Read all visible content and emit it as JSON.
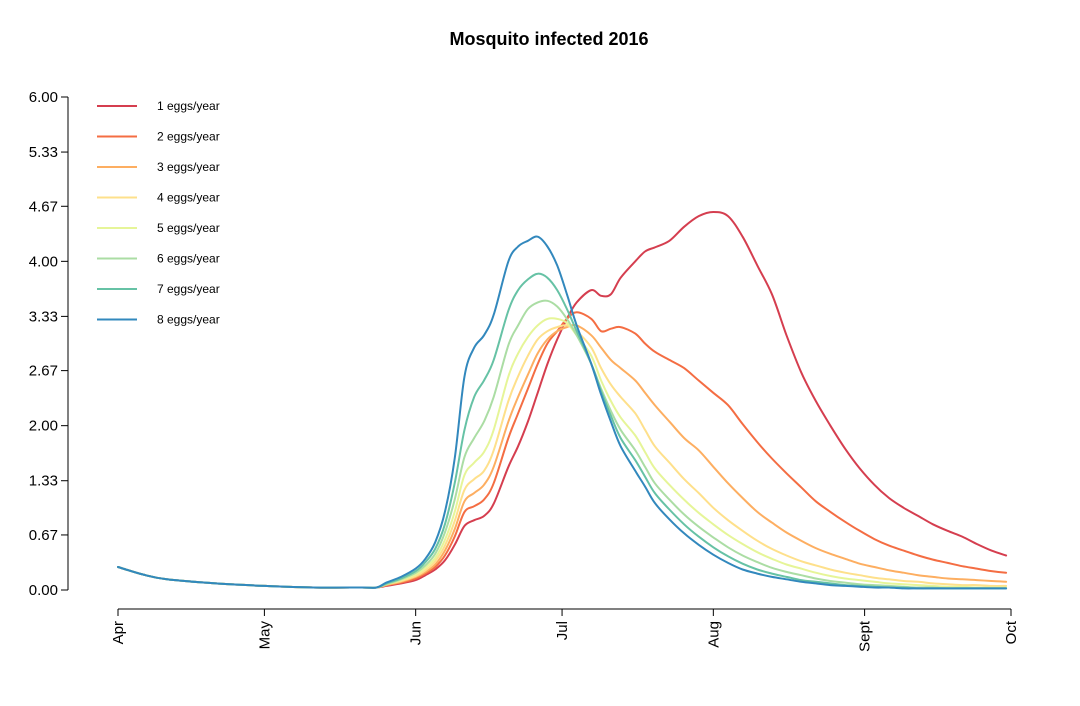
{
  "chart_data": {
    "type": "line",
    "title": "Mosquito infected 2016",
    "xlabel": "",
    "ylabel": "",
    "ylim": [
      0,
      6
    ],
    "y_ticks": [
      0.0,
      0.67,
      1.33,
      2.0,
      2.67,
      3.33,
      4.0,
      4.67,
      5.33,
      6.0
    ],
    "y_tick_labels": [
      "0.00",
      "0.67",
      "1.33",
      "2.00",
      "2.67",
      "3.33",
      "4.00",
      "4.67",
      "5.33",
      "6.00"
    ],
    "x_ticks": [
      {
        "label": "Apr",
        "day": 0
      },
      {
        "label": "May",
        "day": 30
      },
      {
        "label": "Jun",
        "day": 61
      },
      {
        "label": "Jul",
        "day": 91
      },
      {
        "label": "Aug",
        "day": 122
      },
      {
        "label": "Sept",
        "day": 153
      },
      {
        "label": "Oct",
        "day": 183
      }
    ],
    "xlim": [
      0,
      183
    ],
    "grid": false,
    "legend_position": "top-left",
    "series": [
      {
        "name": "1 eggs/year",
        "color": "#d53e4f",
        "x": [
          0,
          5,
          10,
          20,
          30,
          40,
          50,
          53,
          55,
          58,
          61,
          63,
          65,
          67,
          69,
          71,
          73,
          75,
          77,
          80,
          82,
          84,
          86,
          88,
          90,
          92,
          94,
          97,
          99,
          101,
          103,
          106,
          108,
          110,
          113,
          116,
          119,
          122,
          125,
          128,
          131,
          134,
          137,
          140,
          143,
          146,
          149,
          152,
          155,
          158,
          161,
          164,
          167,
          170,
          173,
          176,
          179,
          182
        ],
        "y": [
          0.28,
          0.19,
          0.13,
          0.08,
          0.05,
          0.03,
          0.03,
          0.03,
          0.05,
          0.08,
          0.12,
          0.18,
          0.25,
          0.36,
          0.55,
          0.78,
          0.85,
          0.9,
          1.05,
          1.5,
          1.75,
          2.05,
          2.4,
          2.75,
          3.05,
          3.3,
          3.5,
          3.65,
          3.58,
          3.6,
          3.8,
          4.0,
          4.12,
          4.17,
          4.25,
          4.42,
          4.55,
          4.6,
          4.55,
          4.3,
          3.95,
          3.6,
          3.1,
          2.65,
          2.3,
          2.0,
          1.72,
          1.48,
          1.28,
          1.12,
          1.0,
          0.9,
          0.8,
          0.72,
          0.65,
          0.56,
          0.48,
          0.42
        ]
      },
      {
        "name": "2 eggs/year",
        "color": "#f46d43",
        "x": [
          0,
          5,
          10,
          20,
          30,
          40,
          50,
          53,
          55,
          58,
          61,
          63,
          65,
          67,
          69,
          71,
          73,
          75,
          77,
          80,
          82,
          84,
          86,
          88,
          90,
          92,
          94,
          97,
          99,
          101,
          103,
          106,
          108,
          110,
          113,
          116,
          119,
          122,
          125,
          128,
          131,
          134,
          137,
          140,
          143,
          146,
          149,
          152,
          155,
          158,
          161,
          164,
          167,
          170,
          173,
          176,
          179,
          182
        ],
        "y": [
          0.28,
          0.19,
          0.13,
          0.08,
          0.05,
          0.03,
          0.03,
          0.03,
          0.06,
          0.09,
          0.14,
          0.2,
          0.28,
          0.42,
          0.65,
          0.95,
          1.02,
          1.1,
          1.3,
          1.85,
          2.15,
          2.45,
          2.75,
          3.0,
          3.15,
          3.3,
          3.38,
          3.3,
          3.15,
          3.18,
          3.2,
          3.12,
          3.0,
          2.9,
          2.8,
          2.7,
          2.55,
          2.4,
          2.25,
          2.02,
          1.8,
          1.6,
          1.42,
          1.25,
          1.08,
          0.95,
          0.83,
          0.72,
          0.62,
          0.54,
          0.48,
          0.42,
          0.37,
          0.33,
          0.29,
          0.26,
          0.23,
          0.21
        ]
      },
      {
        "name": "3 eggs/year",
        "color": "#fdae61",
        "x": [
          0,
          5,
          10,
          20,
          30,
          40,
          50,
          53,
          55,
          58,
          61,
          63,
          65,
          67,
          69,
          71,
          73,
          75,
          77,
          80,
          82,
          84,
          86,
          88,
          90,
          92,
          94,
          97,
          99,
          101,
          103,
          106,
          108,
          110,
          113,
          116,
          119,
          122,
          125,
          128,
          131,
          134,
          137,
          140,
          143,
          146,
          149,
          152,
          155,
          158,
          161,
          164,
          167,
          170,
          173,
          176,
          179,
          182
        ],
        "y": [
          0.28,
          0.19,
          0.13,
          0.08,
          0.05,
          0.03,
          0.03,
          0.03,
          0.06,
          0.1,
          0.16,
          0.22,
          0.31,
          0.48,
          0.74,
          1.08,
          1.18,
          1.28,
          1.5,
          2.05,
          2.35,
          2.62,
          2.88,
          3.05,
          3.15,
          3.2,
          3.22,
          3.1,
          2.95,
          2.8,
          2.7,
          2.55,
          2.4,
          2.25,
          2.05,
          1.85,
          1.7,
          1.5,
          1.3,
          1.12,
          0.95,
          0.82,
          0.7,
          0.6,
          0.51,
          0.44,
          0.38,
          0.32,
          0.28,
          0.24,
          0.21,
          0.18,
          0.16,
          0.14,
          0.13,
          0.12,
          0.11,
          0.1
        ]
      },
      {
        "name": "4 eggs/year",
        "color": "#fee08b",
        "x": [
          0,
          5,
          10,
          20,
          30,
          40,
          50,
          53,
          55,
          58,
          61,
          63,
          65,
          67,
          69,
          71,
          73,
          75,
          77,
          80,
          82,
          84,
          86,
          88,
          90,
          92,
          94,
          97,
          99,
          101,
          103,
          106,
          108,
          110,
          113,
          116,
          119,
          122,
          125,
          128,
          131,
          134,
          137,
          140,
          143,
          146,
          149,
          152,
          155,
          158,
          161,
          164,
          167,
          170,
          173,
          176,
          179,
          182
        ],
        "y": [
          0.28,
          0.19,
          0.13,
          0.08,
          0.05,
          0.03,
          0.03,
          0.03,
          0.07,
          0.11,
          0.17,
          0.24,
          0.35,
          0.54,
          0.84,
          1.22,
          1.35,
          1.45,
          1.7,
          2.3,
          2.6,
          2.85,
          3.05,
          3.15,
          3.2,
          3.22,
          3.15,
          2.95,
          2.7,
          2.5,
          2.35,
          2.15,
          1.95,
          1.75,
          1.55,
          1.35,
          1.18,
          1.0,
          0.85,
          0.72,
          0.6,
          0.5,
          0.42,
          0.35,
          0.3,
          0.25,
          0.21,
          0.18,
          0.15,
          0.13,
          0.11,
          0.1,
          0.08,
          0.07,
          0.06,
          0.06,
          0.05,
          0.05
        ]
      },
      {
        "name": "5 eggs/year",
        "color": "#e6f598",
        "x": [
          0,
          5,
          10,
          20,
          30,
          40,
          50,
          53,
          55,
          58,
          61,
          63,
          65,
          67,
          69,
          71,
          73,
          75,
          77,
          80,
          82,
          84,
          86,
          88,
          90,
          92,
          94,
          97,
          99,
          101,
          103,
          106,
          108,
          110,
          113,
          116,
          119,
          122,
          125,
          128,
          131,
          134,
          137,
          140,
          143,
          146,
          149,
          152,
          155,
          158,
          161,
          164,
          167,
          170,
          173,
          176,
          179,
          182
        ],
        "y": [
          0.28,
          0.19,
          0.13,
          0.08,
          0.05,
          0.03,
          0.03,
          0.03,
          0.07,
          0.12,
          0.19,
          0.27,
          0.39,
          0.61,
          0.95,
          1.4,
          1.55,
          1.68,
          1.95,
          2.6,
          2.88,
          3.08,
          3.22,
          3.3,
          3.3,
          3.25,
          3.1,
          2.85,
          2.55,
          2.3,
          2.1,
          1.88,
          1.68,
          1.48,
          1.28,
          1.1,
          0.94,
          0.8,
          0.67,
          0.56,
          0.46,
          0.38,
          0.31,
          0.26,
          0.21,
          0.17,
          0.14,
          0.12,
          0.1,
          0.08,
          0.07,
          0.06,
          0.05,
          0.04,
          0.04,
          0.03,
          0.03,
          0.03
        ]
      },
      {
        "name": "6 eggs/year",
        "color": "#abdda4",
        "x": [
          0,
          5,
          10,
          20,
          30,
          40,
          50,
          53,
          55,
          58,
          61,
          63,
          65,
          67,
          69,
          71,
          73,
          75,
          77,
          80,
          82,
          84,
          86,
          88,
          90,
          92,
          94,
          97,
          99,
          101,
          103,
          106,
          108,
          110,
          113,
          116,
          119,
          122,
          125,
          128,
          131,
          134,
          137,
          140,
          143,
          146,
          149,
          152,
          155,
          158,
          161,
          164,
          167,
          170,
          173,
          176,
          179,
          182
        ],
        "y": [
          0.28,
          0.19,
          0.13,
          0.08,
          0.05,
          0.03,
          0.03,
          0.03,
          0.07,
          0.13,
          0.21,
          0.3,
          0.44,
          0.7,
          1.1,
          1.62,
          1.85,
          2.05,
          2.35,
          2.98,
          3.22,
          3.42,
          3.5,
          3.52,
          3.45,
          3.3,
          3.1,
          2.75,
          2.45,
          2.18,
          1.95,
          1.7,
          1.5,
          1.3,
          1.1,
          0.92,
          0.77,
          0.64,
          0.52,
          0.42,
          0.34,
          0.27,
          0.22,
          0.18,
          0.14,
          0.11,
          0.09,
          0.07,
          0.06,
          0.05,
          0.04,
          0.03,
          0.03,
          0.02,
          0.02,
          0.02,
          0.02,
          0.02
        ]
      },
      {
        "name": "7 eggs/year",
        "color": "#66c2a5",
        "x": [
          0,
          5,
          10,
          20,
          30,
          40,
          50,
          53,
          55,
          58,
          61,
          63,
          65,
          67,
          69,
          71,
          73,
          75,
          77,
          80,
          82,
          84,
          86,
          88,
          90,
          92,
          94,
          97,
          99,
          101,
          103,
          106,
          108,
          110,
          113,
          116,
          119,
          122,
          125,
          128,
          131,
          134,
          137,
          140,
          143,
          146,
          149,
          152,
          155,
          158,
          161,
          164,
          167,
          170,
          173,
          176,
          179,
          182
        ],
        "y": [
          0.28,
          0.19,
          0.13,
          0.08,
          0.05,
          0.03,
          0.03,
          0.03,
          0.08,
          0.14,
          0.23,
          0.34,
          0.5,
          0.8,
          1.3,
          1.95,
          2.35,
          2.55,
          2.8,
          3.4,
          3.65,
          3.78,
          3.85,
          3.8,
          3.65,
          3.42,
          3.15,
          2.75,
          2.42,
          2.12,
          1.85,
          1.58,
          1.38,
          1.18,
          0.98,
          0.8,
          0.65,
          0.52,
          0.41,
          0.32,
          0.25,
          0.2,
          0.16,
          0.12,
          0.1,
          0.08,
          0.06,
          0.05,
          0.04,
          0.03,
          0.03,
          0.02,
          0.02,
          0.02,
          0.02,
          0.02,
          0.02,
          0.02
        ]
      },
      {
        "name": "8 eggs/year",
        "color": "#3288bd",
        "x": [
          0,
          5,
          10,
          20,
          30,
          40,
          50,
          53,
          55,
          58,
          61,
          63,
          65,
          67,
          69,
          71,
          73,
          75,
          77,
          80,
          82,
          84,
          86,
          88,
          90,
          92,
          94,
          97,
          99,
          101,
          103,
          106,
          108,
          110,
          113,
          116,
          119,
          122,
          125,
          128,
          131,
          134,
          137,
          140,
          143,
          146,
          149,
          152,
          155,
          158,
          161,
          164,
          167,
          170,
          173,
          176,
          179,
          182
        ],
        "y": [
          0.28,
          0.19,
          0.13,
          0.08,
          0.05,
          0.03,
          0.03,
          0.03,
          0.09,
          0.16,
          0.26,
          0.38,
          0.58,
          0.95,
          1.6,
          2.6,
          2.95,
          3.1,
          3.35,
          4.0,
          4.18,
          4.25,
          4.3,
          4.18,
          3.95,
          3.6,
          3.22,
          2.75,
          2.38,
          2.05,
          1.75,
          1.45,
          1.26,
          1.06,
          0.86,
          0.69,
          0.55,
          0.43,
          0.33,
          0.25,
          0.2,
          0.16,
          0.13,
          0.1,
          0.08,
          0.06,
          0.05,
          0.04,
          0.03,
          0.03,
          0.02,
          0.02,
          0.02,
          0.02,
          0.02,
          0.02,
          0.02,
          0.02
        ]
      }
    ]
  }
}
